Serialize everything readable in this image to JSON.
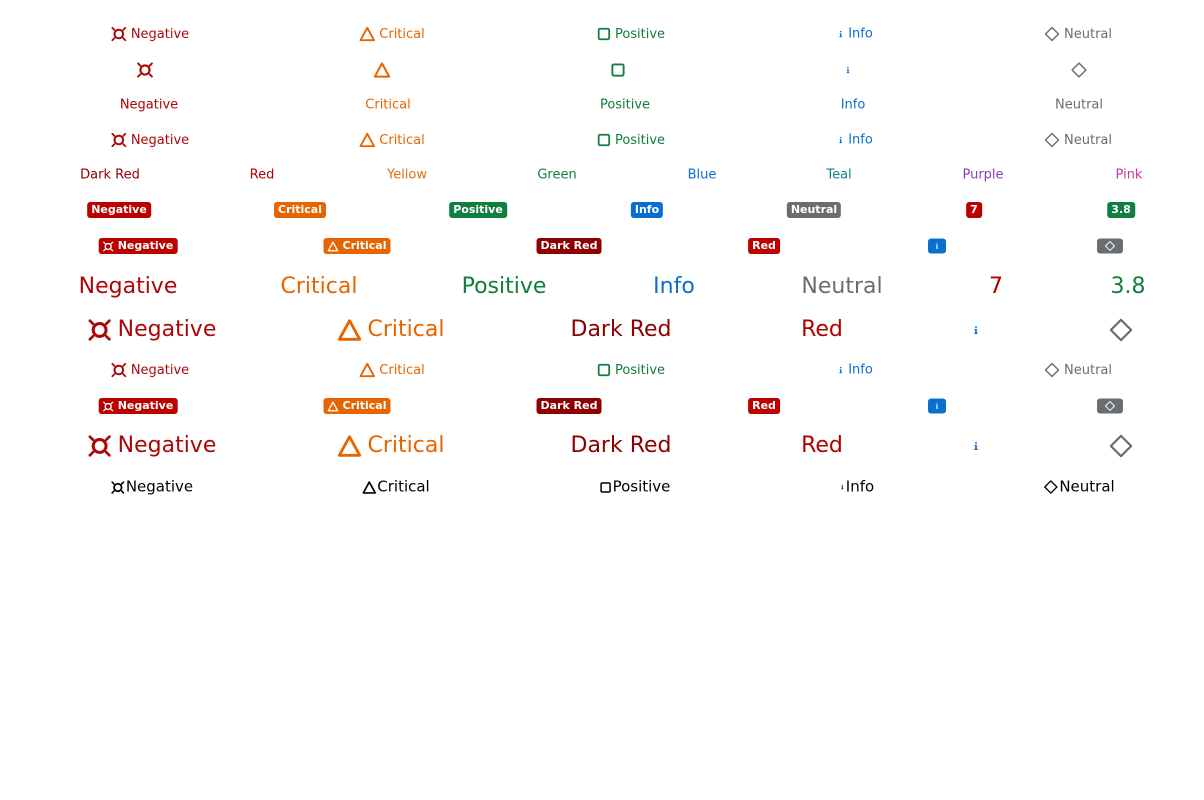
{
  "labels": {
    "negative": "Negative",
    "critical": "Critical",
    "positive": "Positive",
    "info": "Info",
    "neutral": "Neutral",
    "dark_red": "Dark Red",
    "red": "Red",
    "yellow": "Yellow",
    "green": "Green",
    "blue": "Blue",
    "teal": "Teal",
    "purple": "Purple",
    "pink": "Pink"
  },
  "numbers": {
    "seven": "7",
    "three_eight": "3.8"
  },
  "icons": {
    "negative": "error-icon",
    "critical": "warning-triangle-icon",
    "positive": "success-square-icon",
    "info": "information-icon",
    "neutral": "diamond-icon"
  },
  "colors": {
    "negative": "#aa0808",
    "critical": "#e76500",
    "positive": "#107e3e",
    "info": "#0a6ed1",
    "neutral": "#6a6d70",
    "dark_red": "#8b0000",
    "red": "#b00000",
    "yellow": "#df6e0c",
    "green": "#107e3e",
    "blue": "#0a6ed1",
    "teal": "#0f828f",
    "purple": "#8a3ab9",
    "pink": "#c0399f"
  }
}
